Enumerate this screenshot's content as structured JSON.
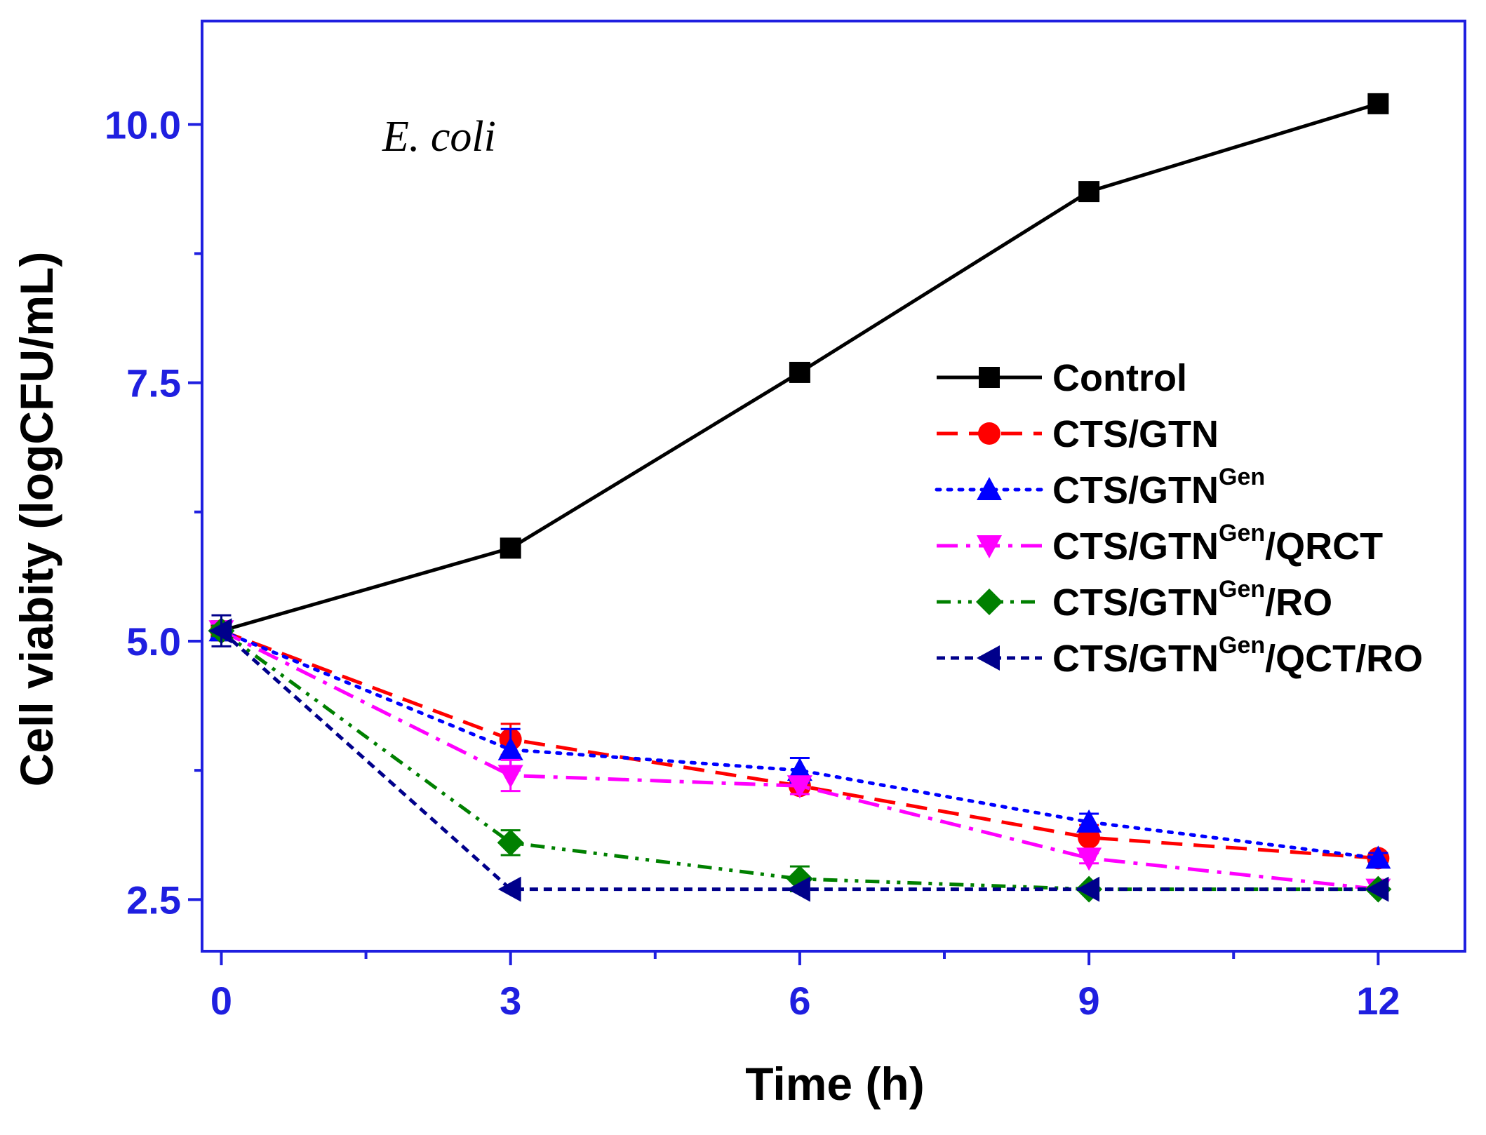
{
  "chart_data": {
    "type": "line",
    "annotation": "E. coli",
    "xlabel": "Time (h)",
    "ylabel": "Cell viabity (logCFU/mL)",
    "xlim": [
      -0.2,
      12.9
    ],
    "ylim": [
      2.0,
      11.0
    ],
    "x_ticks": [
      0,
      3,
      6,
      9,
      12
    ],
    "x_tick_labels": [
      "0",
      "3",
      "6",
      "9",
      "12"
    ],
    "x_minor_ticks": [
      1.5,
      4.5,
      7.5,
      10.5
    ],
    "y_ticks": [
      2.5,
      5.0,
      7.5,
      10.0
    ],
    "y_tick_labels": [
      "2.5",
      "5.0",
      "7.5",
      "10.0"
    ],
    "y_minor_ticks": [
      3.75,
      6.25,
      8.75
    ],
    "x": [
      0,
      3,
      6,
      9,
      12
    ],
    "legend_position": "center-right",
    "colors": {
      "axis": "#1f1fe0",
      "tick_label": "#1f1fe0",
      "text": "#000000"
    },
    "series": [
      {
        "name": "Control",
        "name_main": "Control",
        "name_sup": "",
        "name_suffix": "",
        "values": [
          5.1,
          5.9,
          7.6,
          9.35,
          10.2
        ],
        "errors": [
          0,
          0,
          0,
          0,
          0
        ],
        "color": "#000000",
        "dash": "solid",
        "marker": "square"
      },
      {
        "name": "CTS/GTN",
        "name_main": "CTS/GTN",
        "name_sup": "",
        "name_suffix": "",
        "values": [
          5.1,
          4.05,
          3.6,
          3.1,
          2.9
        ],
        "errors": [
          0.05,
          0.15,
          0,
          0.12,
          0
        ],
        "color": "#ff0000",
        "dash": "dash",
        "marker": "circle"
      },
      {
        "name": "CTS/GTNGen",
        "name_main": "CTS/GTN",
        "name_sup": "Gen",
        "name_suffix": "",
        "values": [
          5.1,
          3.95,
          3.75,
          3.25,
          2.9
        ],
        "errors": [
          0.05,
          0.2,
          0.12,
          0.08,
          0.05
        ],
        "color": "#0000ff",
        "dash": "dot",
        "marker": "triangle-up"
      },
      {
        "name": "CTS/GTNGen/QRCT",
        "name_main": "CTS/GTN",
        "name_sup": "Gen",
        "name_suffix": "/QRCT",
        "values": [
          5.1,
          3.7,
          3.6,
          2.9,
          2.6
        ],
        "errors": [
          0.05,
          0.15,
          0.08,
          0.05,
          0
        ],
        "color": "#ff00ff",
        "dash": "dashdot",
        "marker": "triangle-down"
      },
      {
        "name": "CTS/GTNGen/RO",
        "name_main": "CTS/GTN",
        "name_sup": "Gen",
        "name_suffix": "/RO",
        "values": [
          5.1,
          3.05,
          2.7,
          2.6,
          2.6
        ],
        "errors": [
          0.05,
          0.12,
          0.12,
          0,
          0
        ],
        "color": "#008000",
        "dash": "dashdotdot",
        "marker": "diamond"
      },
      {
        "name": "CTS/GTNGen/QCT/RO",
        "name_main": "CTS/GTN",
        "name_sup": "Gen",
        "name_suffix": "/QCT/RO",
        "values": [
          5.1,
          2.6,
          2.6,
          2.6,
          2.6
        ],
        "errors": [
          0.15,
          0,
          0,
          0,
          0
        ],
        "color": "#00008b",
        "dash": "shortdash",
        "marker": "triangle-left"
      }
    ]
  }
}
